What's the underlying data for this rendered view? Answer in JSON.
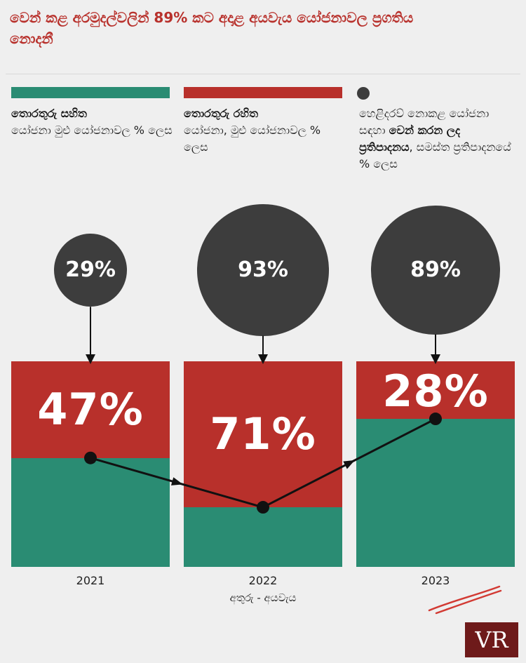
{
  "title": "වෙන් කළ අරමුදල්වලින් 89% කට අදාළ අයවැය යෝජනාවල ප්‍රගතිය නොදනී",
  "legend": {
    "green": {
      "bold": "තොරතුරු සහිත",
      "rest": "යෝජනා මුළු යෝජනාවල % ලෙස",
      "color": "#2a8c73"
    },
    "red": {
      "bold": "තොරතුරු රහිත",
      "rest": "යෝජනා, මුළු යෝජනාවල % ලෙස",
      "color": "#b8302b"
    },
    "bubble": {
      "pre": "හෙළිදරව් නොකළ යෝජනා සඳහා ",
      "bold": "වෙන් කරන ලද ප්‍රතිපාදනය",
      "post": ", සමස්ත ප්‍රතිපාදනයේ % ලෙස",
      "color": "#3d3d3d"
    }
  },
  "source": "අතුරු - අයවැය",
  "logo": "VR",
  "chart_data": {
    "type": "bar",
    "stacked": true,
    "categories": [
      "2021",
      "2022",
      "2023"
    ],
    "ylim": [
      0,
      100
    ],
    "series": [
      {
        "name": "තොරතුරු සහිත යෝජනා",
        "values": [
          53,
          29,
          72
        ],
        "color": "#2a8c73"
      },
      {
        "name": "තොරතුරු රහිත යෝජනා",
        "values": [
          47,
          71,
          28
        ],
        "color": "#b8302b",
        "labels": [
          "47%",
          "71%",
          "28%"
        ]
      }
    ],
    "bubbles": {
      "name": "හෙළිදරව් නොකළ යෝජනා සඳහා වෙන් කරන ලද ප්‍රතිපාදනය",
      "values": [
        29,
        93,
        89
      ],
      "labels": [
        "29%",
        "93%",
        "89%"
      ]
    },
    "line": {
      "values": [
        53,
        29,
        72
      ]
    }
  }
}
